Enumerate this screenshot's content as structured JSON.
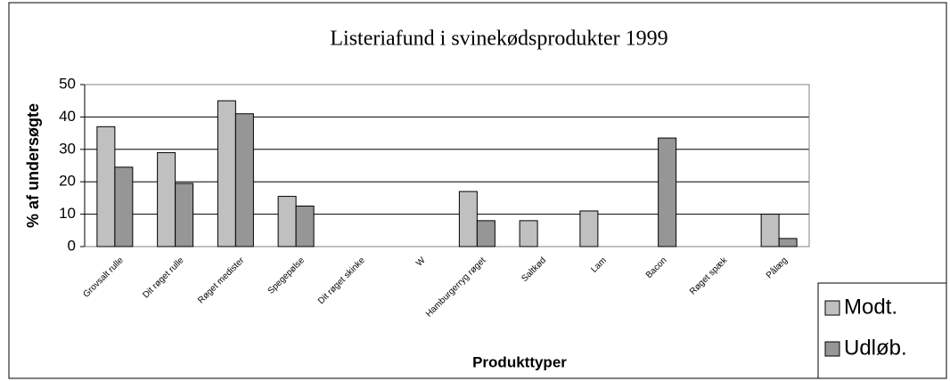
{
  "chart_data": {
    "type": "bar",
    "title": "Listeriafund i svinekødsprodukter 1999",
    "x_label": "Produkttyper",
    "y_label": "% af undersøgte",
    "categories": [
      "Grovsalt rulle",
      "Dit røget rulle",
      "Røget medister",
      "Spegepølse",
      "Dit røget skinke",
      "W",
      "Hamburgerryg røget",
      "Saltkød",
      "Lam",
      "Bacon",
      "Røget spæk",
      "Pålæg"
    ],
    "series": [
      {
        "name": "Modt.",
        "color": "#c0c0c0",
        "values": [
          37,
          29,
          45,
          15.5,
          0,
          0,
          17,
          8,
          11,
          0,
          0,
          10
        ]
      },
      {
        "name": "Udløb.",
        "color": "#969696",
        "values": [
          24.5,
          19.5,
          41,
          12.5,
          0,
          0,
          8,
          0,
          0,
          33.5,
          0,
          2.5
        ]
      }
    ],
    "ylim": [
      0,
      50
    ],
    "yticks": [
      0,
      10,
      20,
      30,
      40,
      50
    ],
    "grid": true,
    "legend": "bottom-right"
  }
}
